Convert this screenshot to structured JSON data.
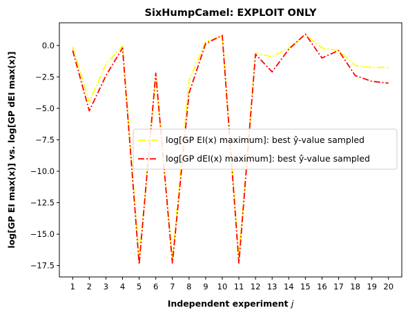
{
  "chart_data": {
    "type": "line",
    "title": "SixHumpCamel: EXPLOIT ONLY",
    "xlabel": "Independent experiment j",
    "ylabel": "log[GP EI max(x)] vs. log[GP dEI max(x)]",
    "x": [
      1,
      2,
      3,
      4,
      5,
      6,
      7,
      8,
      9,
      10,
      11,
      12,
      13,
      14,
      15,
      16,
      17,
      18,
      19,
      20
    ],
    "xticks": [
      "1",
      "2",
      "3",
      "4",
      "5",
      "6",
      "7",
      "8",
      "9",
      "10",
      "11",
      "12",
      "13",
      "14",
      "15",
      "16",
      "17",
      "18",
      "19",
      "20"
    ],
    "yticks": [
      0.0,
      -2.5,
      -5.0,
      -7.5,
      -10.0,
      -12.5,
      -15.0,
      -17.5
    ],
    "ytick_labels": [
      "0.0",
      "−2.5",
      "−5.0",
      "−7.5",
      "−10.0",
      "−12.5",
      "−15.0",
      "−17.5"
    ],
    "xlim": [
      0.2,
      20.8
    ],
    "ylim": [
      -18.4,
      1.8
    ],
    "grid": false,
    "legend_position": "center-right",
    "series": [
      {
        "name": "log[GP EI(x) maximum]: best ŷ-value sampled",
        "color": "#ffff00",
        "dash": "solid-dashdot",
        "values": [
          -0.1,
          -4.5,
          -1.5,
          -0.05,
          -17.0,
          -2.5,
          -17.0,
          -2.8,
          0.3,
          0.75,
          -16.8,
          -0.6,
          -0.9,
          -0.2,
          0.85,
          -0.2,
          -0.4,
          -1.6,
          -1.75,
          -1.75
        ]
      },
      {
        "name": "log[GP dEI(x) maximum]: best ŷ-value sampled",
        "color": "#ff0000",
        "dash": "dashdot",
        "values": [
          -0.4,
          -5.2,
          -2.4,
          -0.2,
          -17.4,
          -2.2,
          -17.3,
          -3.8,
          0.15,
          0.8,
          -17.3,
          -0.7,
          -2.1,
          -0.3,
          0.9,
          -1.0,
          -0.4,
          -2.4,
          -2.85,
          -3.0
        ]
      }
    ]
  }
}
